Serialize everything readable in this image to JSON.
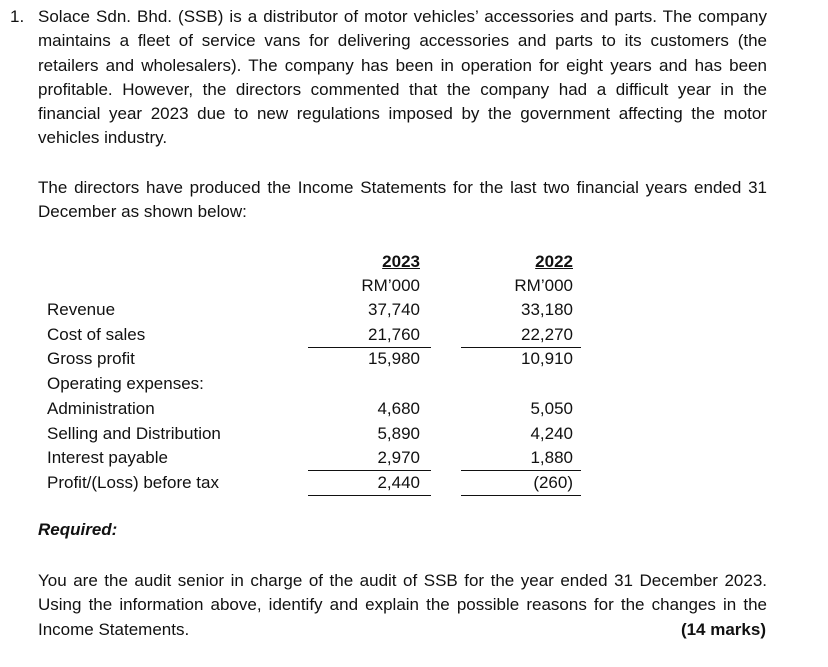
{
  "question": {
    "number": "1.",
    "intro": "Solace Sdn. Bhd. (SSB) is a distributor of motor vehicles’ accessories and parts. The company maintains a fleet of service vans for delivering accessories and parts to its customers (the retailers and wholesalers). The company has been in operation for eight years and has been profitable.  However, the directors commented that the company had a difficult year in the financial year 2023 due to new regulations imposed by the government affecting the motor vehicles industry.",
    "lead": "The directors have produced the Income Statements for the last two financial years ended 31 December as shown below:",
    "table": {
      "columns": [
        {
          "year": "2023",
          "unit": "RM’000"
        },
        {
          "year": "2022",
          "unit": "RM’000"
        }
      ],
      "rows": [
        {
          "label": "Revenue",
          "values": [
            "37,740",
            "33,180"
          ]
        },
        {
          "label": "Cost of sales",
          "values": [
            "21,760",
            "22,270"
          ]
        },
        {
          "label": "Gross profit",
          "values": [
            "15,980",
            "10,910"
          ]
        },
        {
          "label": "Operating expenses:"
        },
        {
          "label": "Administration",
          "values": [
            "4,680",
            "5,050"
          ]
        },
        {
          "label": "Selling and Distribution",
          "values": [
            "5,890",
            "4,240"
          ]
        },
        {
          "label": "Interest payable",
          "values": [
            "2,970",
            "1,880"
          ]
        },
        {
          "label": "Profit/(Loss) before tax",
          "values": [
            "2,440",
            "(260)"
          ]
        }
      ]
    },
    "required_heading": "Required:",
    "task": "You are the audit senior in charge of the audit of SSB for the year ended 31 December 2023. Using the information above, identify and explain the possible reasons for the changes in the Income Statements.",
    "marks": "(14 marks)"
  }
}
